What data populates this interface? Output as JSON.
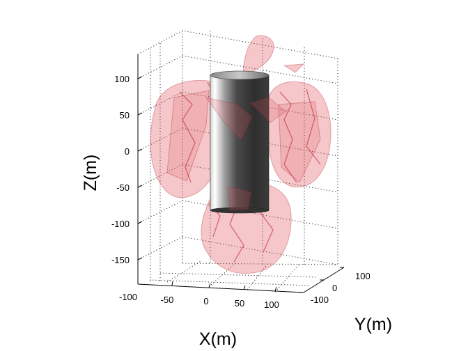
{
  "chart_data": {
    "type": "3d-surface",
    "xlabel": "X(m)",
    "ylabel": "Y(m)",
    "zlabel": "Z(m)",
    "x_ticks": [
      "-100",
      "-50",
      "0",
      "50",
      "100"
    ],
    "y_ticks": [
      "-100",
      "0",
      "100"
    ],
    "z_ticks": [
      "100",
      "50",
      "0",
      "-50",
      "-100",
      "-150"
    ],
    "xlim": [
      -100,
      100
    ],
    "ylim": [
      -100,
      100
    ],
    "zlim": [
      -180,
      130
    ],
    "grid": true,
    "colors": {
      "lobe": "#e0505a",
      "lobe_edge": "#b0202c",
      "cylinder": "#3a3a3a"
    }
  }
}
